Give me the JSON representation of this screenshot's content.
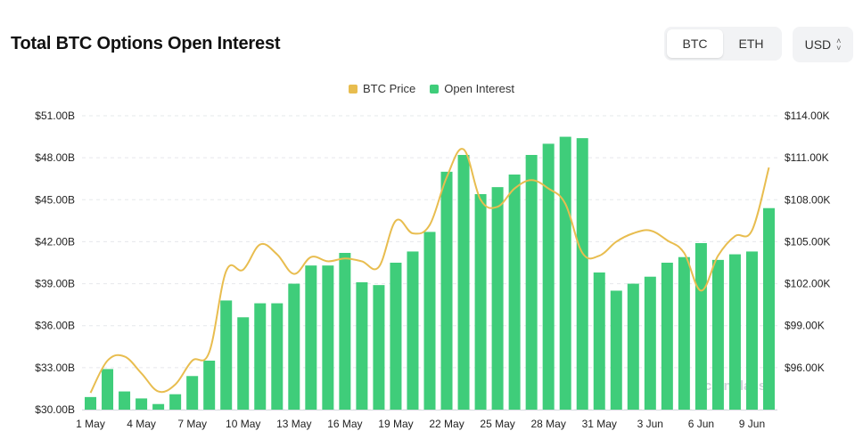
{
  "header": {
    "title": "Total BTC Options Open Interest",
    "asset_toggle": [
      "BTC",
      "ETH"
    ],
    "active_asset": "BTC",
    "currency": "USD"
  },
  "watermark": "coinglass",
  "colors": {
    "bar": "#3fcd7a",
    "line": "#e8bd4f",
    "grid": "#e6e8eb"
  },
  "chart_data": {
    "type": "bar",
    "legend": [
      {
        "name": "BTC Price",
        "color": "#e8bd4f"
      },
      {
        "name": "Open Interest",
        "color": "#3fcd7a"
      }
    ],
    "legend_position": "top-center",
    "x_tick_labels": [
      "1 May",
      "4 May",
      "7 May",
      "10 May",
      "13 May",
      "16 May",
      "19 May",
      "22 May",
      "25 May",
      "28 May",
      "31 May",
      "3 Jun",
      "6 Jun",
      "9 Jun"
    ],
    "x_tick_every": 3,
    "categories": [
      "1 May",
      "2 May",
      "3 May",
      "4 May",
      "5 May",
      "6 May",
      "7 May",
      "8 May",
      "9 May",
      "10 May",
      "11 May",
      "12 May",
      "13 May",
      "14 May",
      "15 May",
      "16 May",
      "17 May",
      "18 May",
      "19 May",
      "20 May",
      "21 May",
      "22 May",
      "23 May",
      "24 May",
      "25 May",
      "26 May",
      "27 May",
      "28 May",
      "29 May",
      "30 May",
      "31 May",
      "1 Jun",
      "2 Jun",
      "3 Jun",
      "4 Jun",
      "5 Jun",
      "6 Jun",
      "7 Jun",
      "8 Jun",
      "9 Jun",
      "10 Jun"
    ],
    "series": [
      {
        "name": "Open Interest",
        "axis": "left",
        "type": "bar",
        "values": [
          30.9,
          32.9,
          31.3,
          30.8,
          30.4,
          31.1,
          32.4,
          33.5,
          37.8,
          36.6,
          37.6,
          37.6,
          39.0,
          40.3,
          40.3,
          41.2,
          39.1,
          38.9,
          40.5,
          41.3,
          42.7,
          47.0,
          48.2,
          45.4,
          45.9,
          46.8,
          48.2,
          49.0,
          49.5,
          49.4,
          39.8,
          38.5,
          39.0,
          39.5,
          40.5,
          40.9,
          41.9,
          40.7,
          41.1,
          41.3,
          44.4
        ]
      },
      {
        "name": "BTC Price",
        "axis": "right",
        "type": "line",
        "values": [
          94.2,
          96.5,
          96.8,
          95.6,
          94.3,
          94.8,
          96.5,
          97.1,
          102.9,
          103.0,
          104.8,
          104.1,
          102.7,
          103.9,
          103.6,
          103.8,
          103.6,
          103.2,
          106.5,
          105.6,
          106.2,
          109.6,
          111.6,
          108.0,
          107.5,
          108.8,
          109.4,
          108.8,
          107.7,
          104.2,
          104.0,
          105.0,
          105.6,
          105.8,
          105.1,
          104.2,
          101.5,
          104.0,
          105.4,
          105.8,
          110.3
        ]
      }
    ],
    "y_left": {
      "ticks": [
        "$30.00B",
        "$33.00B",
        "$36.00B",
        "$39.00B",
        "$42.00B",
        "$45.00B",
        "$48.00B",
        "$51.00B"
      ],
      "range": [
        30,
        51
      ],
      "unit": "B USD"
    },
    "y_right": {
      "ticks": [
        "$96.00K",
        "$99.00K",
        "$102.00K",
        "$105.00K",
        "$108.00K",
        "$111.00K",
        "$114.00K"
      ],
      "range": [
        93,
        114
      ],
      "unit": "K USD"
    },
    "grid": true
  }
}
